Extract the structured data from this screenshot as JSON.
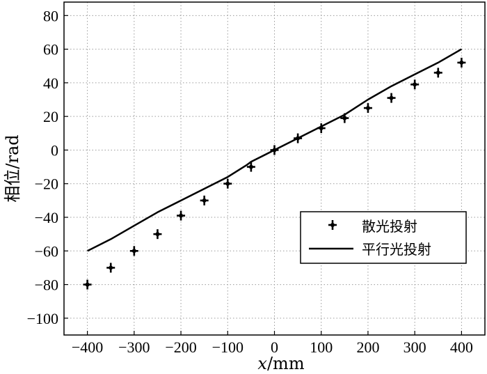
{
  "chart_data": {
    "type": "line",
    "xlabel_var": "x",
    "xlabel_unit": "/mm",
    "ylabel": "相位/rad",
    "xlim": [
      -450,
      450
    ],
    "ylim": [
      -110,
      88
    ],
    "xticks": [
      -400,
      -300,
      -200,
      -100,
      0,
      100,
      200,
      300,
      400
    ],
    "yticks": [
      -100,
      -80,
      -60,
      -40,
      -20,
      0,
      20,
      40,
      60,
      80
    ],
    "xtick_labels": [
      "−400",
      "−300",
      "−200",
      "−100",
      "0",
      "100",
      "200",
      "300",
      "400"
    ],
    "ytick_labels": [
      "−100",
      "−80",
      "−60",
      "−40",
      "−20",
      "0",
      "20",
      "40",
      "60",
      "80"
    ],
    "grid": true,
    "legend_position": "lower-right",
    "series": [
      {
        "name": "散光投射",
        "style": "marker-plus",
        "x": [
          -400,
          -350,
          -300,
          -250,
          -200,
          -150,
          -100,
          -50,
          0,
          50,
          100,
          150,
          200,
          250,
          300,
          350,
          400
        ],
        "y": [
          -80,
          -70,
          -60,
          -50,
          -39,
          -30,
          -20,
          -10,
          0,
          7,
          13,
          19,
          25,
          31,
          39,
          46,
          52
        ]
      },
      {
        "name": "平行光投射",
        "style": "line",
        "x": [
          -400,
          -350,
          -300,
          -250,
          -200,
          -150,
          -100,
          -60,
          -50,
          0,
          50,
          100,
          150,
          200,
          250,
          300,
          350,
          400
        ],
        "y": [
          -60,
          -53,
          -45,
          -37,
          -30,
          -23,
          -16,
          -9,
          -7,
          0,
          7,
          14,
          21,
          30,
          38,
          45,
          52,
          60
        ]
      }
    ]
  }
}
